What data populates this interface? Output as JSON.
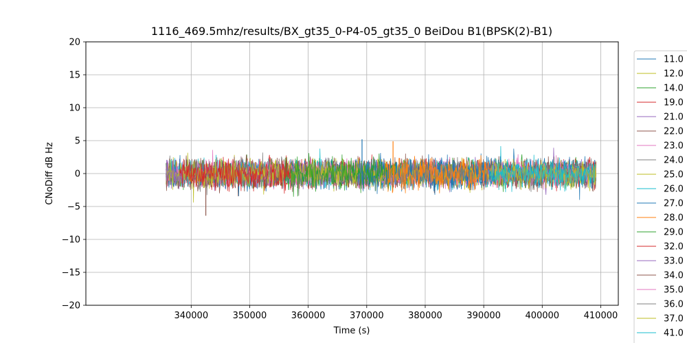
{
  "chart_data": {
    "type": "line",
    "title": "1116_469.5mhz/results/BX_gt35_0-P4-05_gt35_0 BeiDou B1(BPSK(2)-B1)",
    "xlabel": "Time (s)",
    "ylabel": "CNoDiff dB Hz",
    "xlim": [
      322000,
      413000
    ],
    "ylim": [
      -20,
      20
    ],
    "x_ticks": [
      340000,
      350000,
      360000,
      370000,
      380000,
      390000,
      400000,
      410000
    ],
    "x_tick_labels": [
      "340000",
      "350000",
      "360000",
      "370000",
      "380000",
      "390000",
      "400000",
      "410000"
    ],
    "y_ticks": [
      -20,
      -15,
      -10,
      -5,
      0,
      5,
      10,
      15,
      20
    ],
    "y_tick_labels": [
      "−20",
      "−15",
      "−10",
      "−5",
      "0",
      "5",
      "10",
      "15",
      "20"
    ],
    "grid": true,
    "legend_position": "right, outside plot, clipped at bottom",
    "series": [
      {
        "name": "11.0",
        "color": "#1f77b4",
        "x": [
          368500,
          392000
        ],
        "amplitude": 1.6
      },
      {
        "name": "12.0",
        "color": "#bcbd22",
        "x": [
          335700,
          409200
        ],
        "amplitude": 1.2
      },
      {
        "name": "14.0",
        "color": "#2ca02c",
        "x": [
          335700,
          409200
        ],
        "amplitude": 1.4
      },
      {
        "name": "19.0",
        "color": "#d62728",
        "x": [
          335700,
          409200
        ],
        "amplitude": 1.4
      },
      {
        "name": "21.0",
        "color": "#9467bd",
        "x": [
          335700,
          409200
        ],
        "amplitude": 1.3
      },
      {
        "name": "22.0",
        "color": "#8c564b",
        "x": [
          335700,
          409200
        ],
        "amplitude": 1.4
      },
      {
        "name": "23.0",
        "color": "#e377c2",
        "x": [
          335700,
          409200
        ],
        "amplitude": 1.3
      },
      {
        "name": "24.0",
        "color": "#7f7f7f",
        "x": [
          335700,
          409200
        ],
        "amplitude": 1.3
      },
      {
        "name": "25.0",
        "color": "#bcbd22",
        "x": [
          335700,
          409200
        ],
        "amplitude": 1.2
      },
      {
        "name": "26.0",
        "color": "#17becf",
        "x": [
          335700,
          409200
        ],
        "amplitude": 1.4
      },
      {
        "name": "27.0",
        "color": "#1f77b4",
        "x": [
          335700,
          409200
        ],
        "amplitude": 1.4
      },
      {
        "name": "28.0",
        "color": "#ff7f0e",
        "x": [
          373000,
          391000
        ],
        "amplitude": 1.6
      },
      {
        "name": "29.0",
        "color": "#2ca02c",
        "x": [
          356000,
          375000
        ],
        "amplitude": 1.5
      },
      {
        "name": "32.0",
        "color": "#d62728",
        "x": [
          338000,
          357000
        ],
        "amplitude": 1.5
      },
      {
        "name": "33.0",
        "color": "#9467bd",
        "x": [
          335700,
          338500
        ],
        "amplitude": 1.2
      },
      {
        "name": "34.0",
        "color": "#8c564b",
        "x": [
          335700,
          409200
        ],
        "amplitude": 1.5
      },
      {
        "name": "35.0",
        "color": "#e377c2",
        "x": [
          335700,
          409200
        ],
        "amplitude": 1.2
      },
      {
        "name": "36.0",
        "color": "#7f7f7f",
        "x": [
          335700,
          409200
        ],
        "amplitude": 1.2
      },
      {
        "name": "37.0",
        "color": "#bcbd22",
        "x": [
          335700,
          409200
        ],
        "amplitude": 1.2
      },
      {
        "name": "41.0",
        "color": "#17becf",
        "x": [
          391000,
          409200
        ],
        "amplitude": 1.4
      }
    ],
    "annotations": [
      {
        "series": "34.0",
        "x": 342500,
        "y": -6.4
      },
      {
        "series": "11.0",
        "x": 369200,
        "y": 5.2
      },
      {
        "series": "28.0",
        "x": 374500,
        "y": 4.9
      }
    ]
  }
}
